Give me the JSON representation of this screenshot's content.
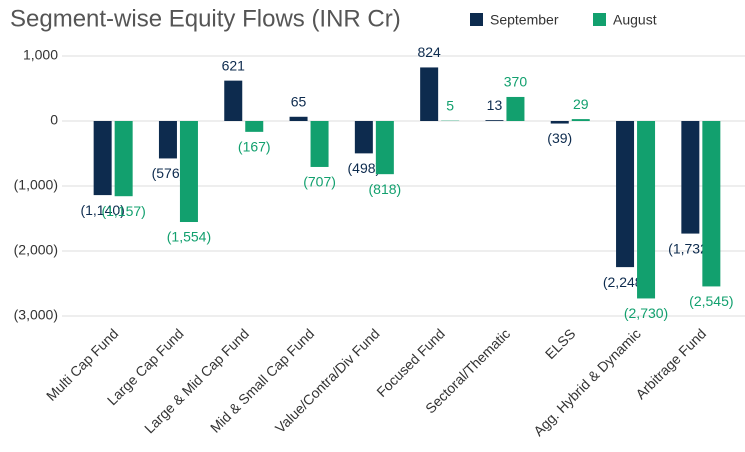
{
  "chart_data": {
    "type": "bar",
    "title": "Segment-wise Equity Flows (INR Cr)",
    "categories": [
      "Multi Cap Fund",
      "Large Cap Fund",
      "Large & Mid Cap Fund",
      "Mid & Small Cap Fund",
      "Value/Contra/Div Fund",
      "Focused Fund",
      "Sectoral/Thematic",
      "ELSS",
      "Agg. Hybrid & Dynamic",
      "Arbitrage Fund"
    ],
    "series": [
      {
        "name": "September",
        "color": "#0d2b4e",
        "values": [
          -1140,
          -576,
          621,
          65,
          -498,
          824,
          13,
          -39,
          -2248,
          -1732
        ],
        "value_labels": [
          "(1,140)",
          "(576)",
          "621",
          "65",
          "(498)",
          "824",
          "13",
          "(39)",
          "(2,248)",
          "(1,732)"
        ]
      },
      {
        "name": "August",
        "color": "#12a06e",
        "values": [
          -1157,
          -1554,
          -167,
          -707,
          -818,
          5,
          370,
          29,
          -2730,
          -2545
        ],
        "value_labels": [
          "(1,157)",
          "(1,554)",
          "(167)",
          "(707)",
          "(818)",
          "5",
          "370",
          "29",
          "(2,730)",
          "(2,545)"
        ]
      }
    ],
    "ylim": [
      -3000,
      1000
    ],
    "yticks": [
      {
        "value": 1000,
        "label": "1,000"
      },
      0,
      {
        "value": -1000,
        "label": "(1,000)"
      },
      {
        "value": -2000,
        "label": "(2,000)"
      },
      {
        "value": -3000,
        "label": "(3,000)"
      }
    ],
    "grid": true
  }
}
